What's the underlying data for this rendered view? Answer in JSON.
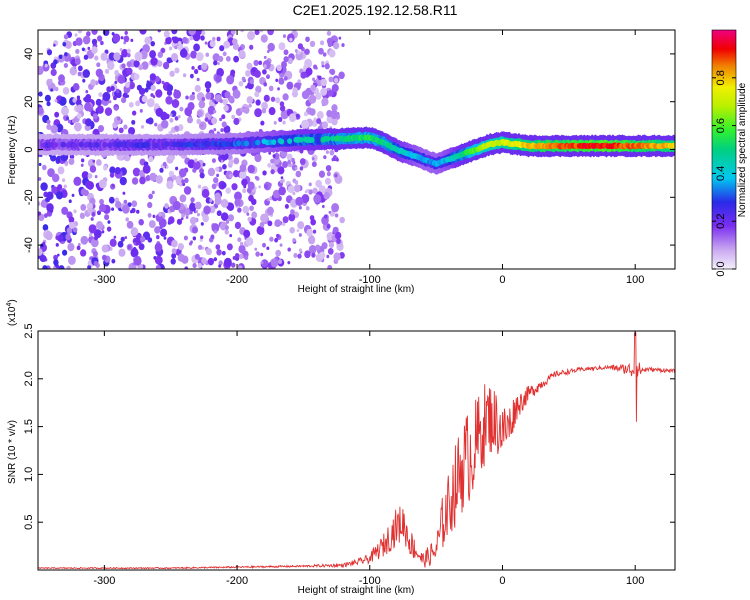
{
  "title": "C2E1.2025.192.12.58.R11",
  "chart_data": [
    {
      "type": "heatmap",
      "xlabel": "Height of straight line (km)",
      "ylabel": "Frequency (Hz)",
      "xlim": [
        -350,
        130
      ],
      "ylim": [
        -50,
        50
      ],
      "xticks": [
        -300,
        -200,
        -100,
        0,
        100
      ],
      "yticks": [
        -40,
        -20,
        0,
        20,
        40
      ],
      "colorbar": {
        "label": "Normalized spectral amplitude",
        "range": [
          0.0,
          1.0
        ],
        "ticks": [
          0.0,
          0.2,
          0.4,
          0.6,
          0.8
        ],
        "colormap": "rainbow (violet-blue-cyan-green-yellow-red-magenta)"
      },
      "ridge": {
        "x": [
          -350,
          -300,
          -250,
          -200,
          -150,
          -120,
          -100,
          -90,
          -80,
          -70,
          -60,
          -50,
          -40,
          -30,
          -20,
          -10,
          0,
          20,
          40,
          60,
          80,
          100,
          130
        ],
        "y": [
          2,
          2,
          2,
          2.5,
          4,
          4.5,
          5,
          3,
          0,
          -2,
          -4,
          -6,
          -4,
          -2,
          0,
          2,
          3,
          1.5,
          1.5,
          1.5,
          1.5,
          1.5,
          1.5
        ],
        "amplitude": [
          0.2,
          0.22,
          0.25,
          0.3,
          0.45,
          0.5,
          0.55,
          0.5,
          0.45,
          0.4,
          0.35,
          0.35,
          0.4,
          0.5,
          0.6,
          0.7,
          0.7,
          0.8,
          0.85,
          0.9,
          0.92,
          0.85,
          0.8
        ]
      },
      "noise_region_x": [
        -350,
        -120
      ]
    },
    {
      "type": "line",
      "xlabel": "Height of straight line (km)",
      "ylabel": "SNR (10 * v/v)",
      "y_multiplier": "(x10^4)",
      "xlim": [
        -350,
        130
      ],
      "ylim": [
        0,
        2.5
      ],
      "xticks": [
        -300,
        -200,
        -100,
        0,
        100
      ],
      "yticks": [
        0.5,
        1.0,
        1.5,
        2.0,
        2.5
      ],
      "color": "#e03030",
      "series": [
        {
          "x": [
            -350,
            -300,
            -250,
            -200,
            -150,
            -120,
            -110,
            -100,
            -90,
            -80,
            -75,
            -70,
            -60,
            -50,
            -45,
            -40,
            -35,
            -30,
            -25,
            -20,
            -15,
            -10,
            -5,
            0,
            5,
            10,
            20,
            30,
            40,
            60,
            80,
            95,
            100,
            105,
            110,
            130
          ],
          "y": [
            0.02,
            0.02,
            0.02,
            0.03,
            0.04,
            0.05,
            0.08,
            0.12,
            0.25,
            0.45,
            0.5,
            0.3,
            0.1,
            0.2,
            0.5,
            0.7,
            0.9,
            1.1,
            1.2,
            1.3,
            1.5,
            1.6,
            1.55,
            1.45,
            1.5,
            1.7,
            1.85,
            1.95,
            2.05,
            2.1,
            2.12,
            2.1,
            2.1,
            2.09,
            2.1,
            2.08
          ],
          "noise": [
            0.005,
            0.006,
            0.006,
            0.008,
            0.01,
            0.02,
            0.03,
            0.05,
            0.12,
            0.2,
            0.2,
            0.15,
            0.08,
            0.15,
            0.3,
            0.35,
            0.45,
            0.5,
            0.5,
            0.5,
            0.45,
            0.4,
            0.35,
            0.3,
            0.25,
            0.15,
            0.08,
            0.05,
            0.03,
            0.02,
            0.02,
            0.06,
            0.15,
            0.04,
            0.02,
            0.02
          ]
        }
      ],
      "spike": {
        "x": 100,
        "ymax": 2.48,
        "ymin": 1.55
      }
    }
  ]
}
